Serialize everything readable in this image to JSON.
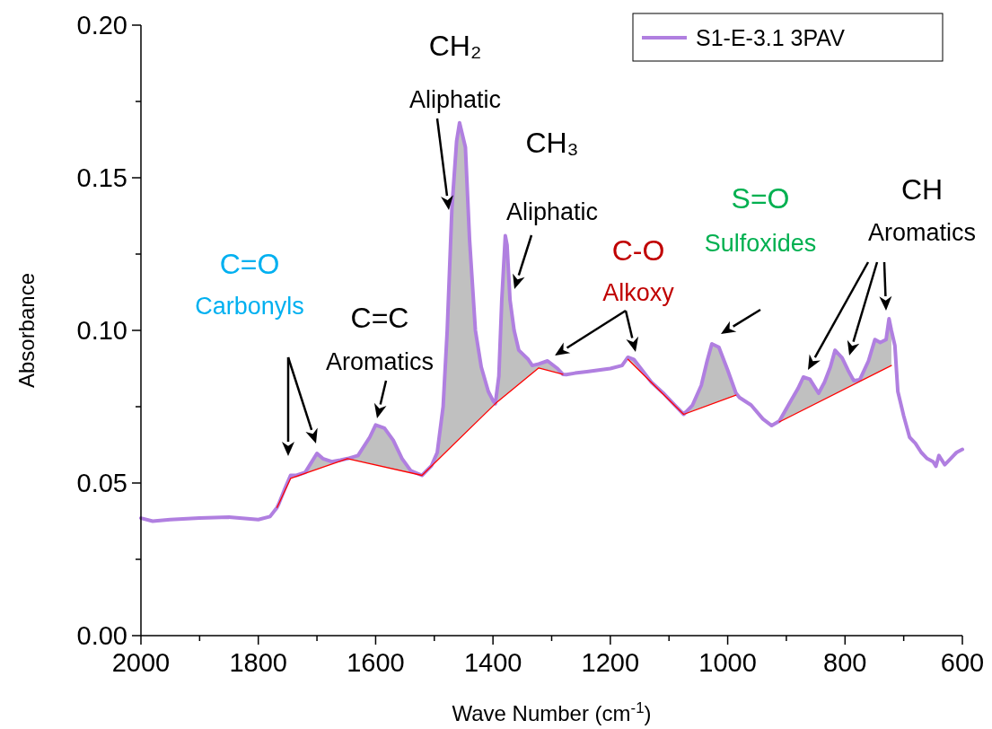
{
  "chart_data": {
    "type": "line",
    "xlabel": "Wave Number (cm$^{-1}$)",
    "ylabel": "Absorbance",
    "xlim": [
      2000,
      600
    ],
    "ylim": [
      0,
      0.2
    ],
    "xticks": [
      2000,
      {
        "value": 1900,
        "label": null
      },
      1800,
      {
        "value": 1700,
        "label": null
      },
      1600,
      {
        "value": 1500,
        "label": null
      },
      1400,
      {
        "value": 1300,
        "label": null
      },
      1200,
      {
        "value": 1100,
        "label": null
      },
      1000,
      {
        "value": 900,
        "label": null
      },
      800,
      {
        "value": 700,
        "label": null
      },
      600
    ],
    "yticks": [
      {
        "value": 0,
        "label": "0.00"
      },
      {
        "value": 0.025,
        "label": null
      },
      {
        "value": 0.05,
        "label": "0.05"
      },
      {
        "value": 0.075,
        "label": null
      },
      {
        "value": 0.1,
        "label": "0.10"
      },
      {
        "value": 0.125,
        "label": null
      },
      {
        "value": 0.15,
        "label": "0.15"
      },
      {
        "value": 0.175,
        "label": null
      },
      {
        "value": 0.2,
        "label": "0.20"
      }
    ],
    "legend": "top right",
    "series": [
      {
        "name": "S1-E-3.1 3PAV",
        "color": "#b07fe0",
        "x": [
          2000,
          1980,
          1950,
          1900,
          1850,
          1800,
          1780,
          1768,
          1765,
          1755,
          1745,
          1735,
          1720,
          1700,
          1690,
          1675,
          1660,
          1648,
          1630,
          1610,
          1600,
          1585,
          1570,
          1555,
          1540,
          1521,
          1505,
          1495,
          1485,
          1478,
          1470,
          1462,
          1457,
          1447,
          1440,
          1430,
          1420,
          1408,
          1400,
          1396,
          1390,
          1385,
          1379,
          1376,
          1371,
          1364,
          1356,
          1340,
          1333,
          1322,
          1307,
          1290,
          1281,
          1275,
          1260,
          1240,
          1220,
          1200,
          1180,
          1170,
          1160,
          1150,
          1130,
          1110,
          1090,
          1075,
          1060,
          1045,
          1035,
          1027,
          1015,
          1000,
          986,
          980,
          960,
          940,
          925,
          912,
          895,
          880,
          871,
          860,
          845,
          835,
          825,
          817,
          805,
          795,
          785,
          775,
          760,
          749,
          740,
          730,
          725,
          721,
          715,
          710,
          700,
          690,
          680,
          670,
          660,
          650,
          645,
          640,
          630,
          620,
          610,
          600
        ],
        "values": [
          0.0385,
          0.0375,
          0.038,
          0.0385,
          0.0388,
          0.038,
          0.039,
          0.042,
          0.0432,
          0.048,
          0.0525,
          0.0525,
          0.0535,
          0.0597,
          0.058,
          0.057,
          0.0575,
          0.058,
          0.059,
          0.065,
          0.069,
          0.068,
          0.064,
          0.058,
          0.054,
          0.0525,
          0.0556,
          0.06,
          0.075,
          0.1,
          0.14,
          0.162,
          0.168,
          0.16,
          0.13,
          0.1,
          0.088,
          0.08,
          0.077,
          0.076,
          0.085,
          0.11,
          0.131,
          0.128,
          0.11,
          0.1,
          0.0935,
          0.0905,
          0.0885,
          0.089,
          0.09,
          0.0875,
          0.0856,
          0.0855,
          0.086,
          0.0865,
          0.087,
          0.0875,
          0.0885,
          0.0912,
          0.0905,
          0.088,
          0.083,
          0.0795,
          0.0755,
          0.0725,
          0.0755,
          0.082,
          0.09,
          0.0956,
          0.0945,
          0.087,
          0.0795,
          0.078,
          0.0755,
          0.071,
          0.0688,
          0.0703,
          0.076,
          0.081,
          0.0847,
          0.084,
          0.0794,
          0.083,
          0.088,
          0.0935,
          0.091,
          0.087,
          0.0835,
          0.0838,
          0.09,
          0.097,
          0.096,
          0.097,
          0.1038,
          0.1,
          0.095,
          0.08,
          0.072,
          0.065,
          0.063,
          0.06,
          0.058,
          0.057,
          0.0555,
          0.059,
          0.056,
          0.058,
          0.06,
          0.061
        ],
        "lower": [
          null,
          null,
          null,
          null,
          null,
          null,
          null,
          0.042,
          0.0432,
          0.0474,
          0.0515,
          0.0522,
          0.0532,
          0.0545,
          0.0552,
          0.0562,
          0.0572,
          0.058,
          0.0572,
          0.0564,
          0.0559,
          0.0553,
          0.0546,
          0.054,
          0.0533,
          0.0525,
          0.0555,
          0.0574,
          0.0593,
          0.0606,
          0.0621,
          0.0636,
          0.0645,
          0.0664,
          0.0677,
          0.0696,
          0.0715,
          0.0737,
          0.0752,
          0.076,
          0.0769,
          0.0777,
          0.0787,
          0.0792,
          0.08,
          0.0811,
          0.0823,
          0.0849,
          0.086,
          0.0877,
          0.087,
          0.0862,
          0.0856,
          null,
          null,
          null,
          null,
          null,
          null,
          0.0905,
          0.0886,
          0.0867,
          0.0829,
          0.0791,
          0.0753,
          0.0725,
          0.0736,
          0.0746,
          0.0753,
          0.0759,
          0.0768,
          0.0778,
          0.0788,
          null,
          null,
          null,
          null,
          0.07,
          0.0716,
          0.0731,
          0.074,
          0.075,
          0.0765,
          0.0775,
          0.0784,
          0.0792,
          0.0804,
          0.0813,
          0.0823,
          0.0833,
          0.0847,
          0.0858,
          0.0867,
          0.0877,
          0.0882,
          0.0885,
          null,
          null,
          null,
          null,
          null,
          null,
          null,
          null,
          null,
          null,
          null,
          null,
          null,
          null
        ],
        "upper": [
          null,
          null,
          null,
          null,
          null,
          null,
          null,
          0.042,
          0.0432,
          0.048,
          0.0525,
          0.0525,
          0.0535,
          0.0597,
          0.058,
          0.057,
          0.0575,
          0.058,
          0.059,
          0.065,
          0.069,
          0.068,
          0.064,
          0.058,
          0.054,
          0.0525,
          0.0556,
          0.06,
          0.075,
          0.1,
          0.14,
          0.162,
          0.168,
          0.16,
          0.13,
          0.1,
          0.088,
          0.08,
          0.077,
          0.076,
          0.085,
          0.11,
          0.131,
          0.128,
          0.11,
          0.1,
          0.0935,
          0.0905,
          0.0885,
          0.089,
          0.09,
          0.0875,
          0.0856,
          null,
          null,
          null,
          null,
          null,
          null,
          0.0912,
          0.0905,
          0.088,
          0.083,
          0.0795,
          0.0755,
          0.0725,
          0.0755,
          0.082,
          0.09,
          0.0956,
          0.0945,
          0.087,
          0.0795,
          null,
          null,
          null,
          null,
          0.0703,
          0.076,
          0.081,
          0.0847,
          0.084,
          0.0794,
          0.083,
          0.088,
          0.0935,
          0.091,
          0.087,
          0.0835,
          0.0838,
          0.09,
          0.097,
          0.096,
          0.097,
          0.1038,
          0.1,
          null,
          null,
          null,
          null,
          null,
          null,
          null,
          null,
          null,
          null,
          null,
          null,
          null,
          null
        ]
      },
      {
        "color": "#ff0000",
        "x": [
          1768,
          1745,
          1648,
          1521,
          1396,
          1322,
          1281,
          1230,
          1170,
          1075,
          986,
          950,
          912,
          721
        ],
        "values": [
          0.042,
          0.0515,
          0.058,
          0.0525,
          0.076,
          0.0877,
          0.0856,
          null,
          0.0905,
          0.0725,
          0.0788,
          null,
          0.07,
          0.0885
        ]
      }
    ],
    "annotations": [
      "C=O\nCarbonyls",
      "C=C\nAromatics",
      "CH₂\nAliphatic",
      "CH₃\nAliphatic",
      "C-O\nAlkoxy",
      "S=O\nSulfoxides",
      "CH\nAromatics"
    ]
  }
}
